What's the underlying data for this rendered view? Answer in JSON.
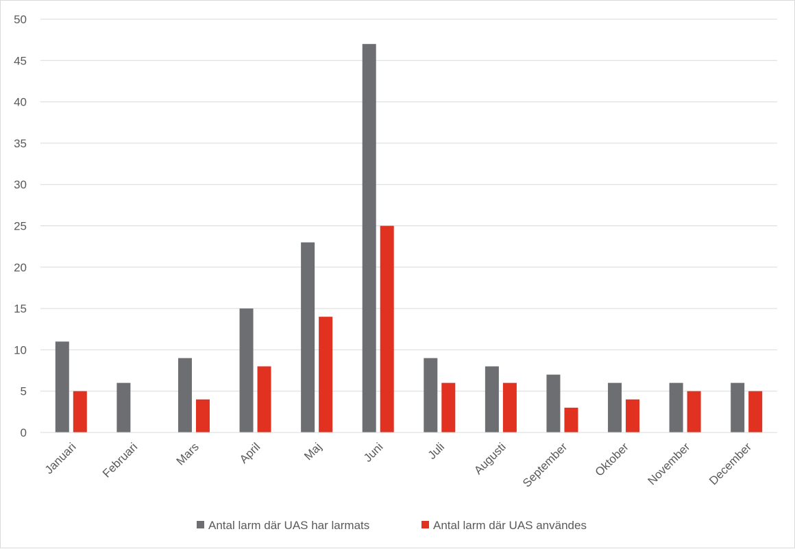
{
  "chart_data": {
    "type": "bar",
    "categories": [
      "Januari",
      "Februari",
      "Mars",
      "April",
      "Maj",
      "Juni",
      "Juli",
      "Augusti",
      "September",
      "Oktober",
      "November",
      "December"
    ],
    "series": [
      {
        "name": "Antal larm där UAS har larmats",
        "color": "#6d6e72",
        "values": [
          11,
          6,
          9,
          15,
          23,
          47,
          9,
          8,
          7,
          6,
          6,
          6
        ]
      },
      {
        "name": "Antal larm där UAS användes",
        "color": "#e03121",
        "values": [
          5,
          0,
          4,
          8,
          14,
          25,
          6,
          6,
          3,
          4,
          5,
          5
        ]
      }
    ],
    "ylim": [
      0,
      50
    ],
    "yticks": [
      0,
      5,
      10,
      15,
      20,
      25,
      30,
      35,
      40,
      45,
      50
    ],
    "grid": true,
    "legend_position": "bottom"
  }
}
